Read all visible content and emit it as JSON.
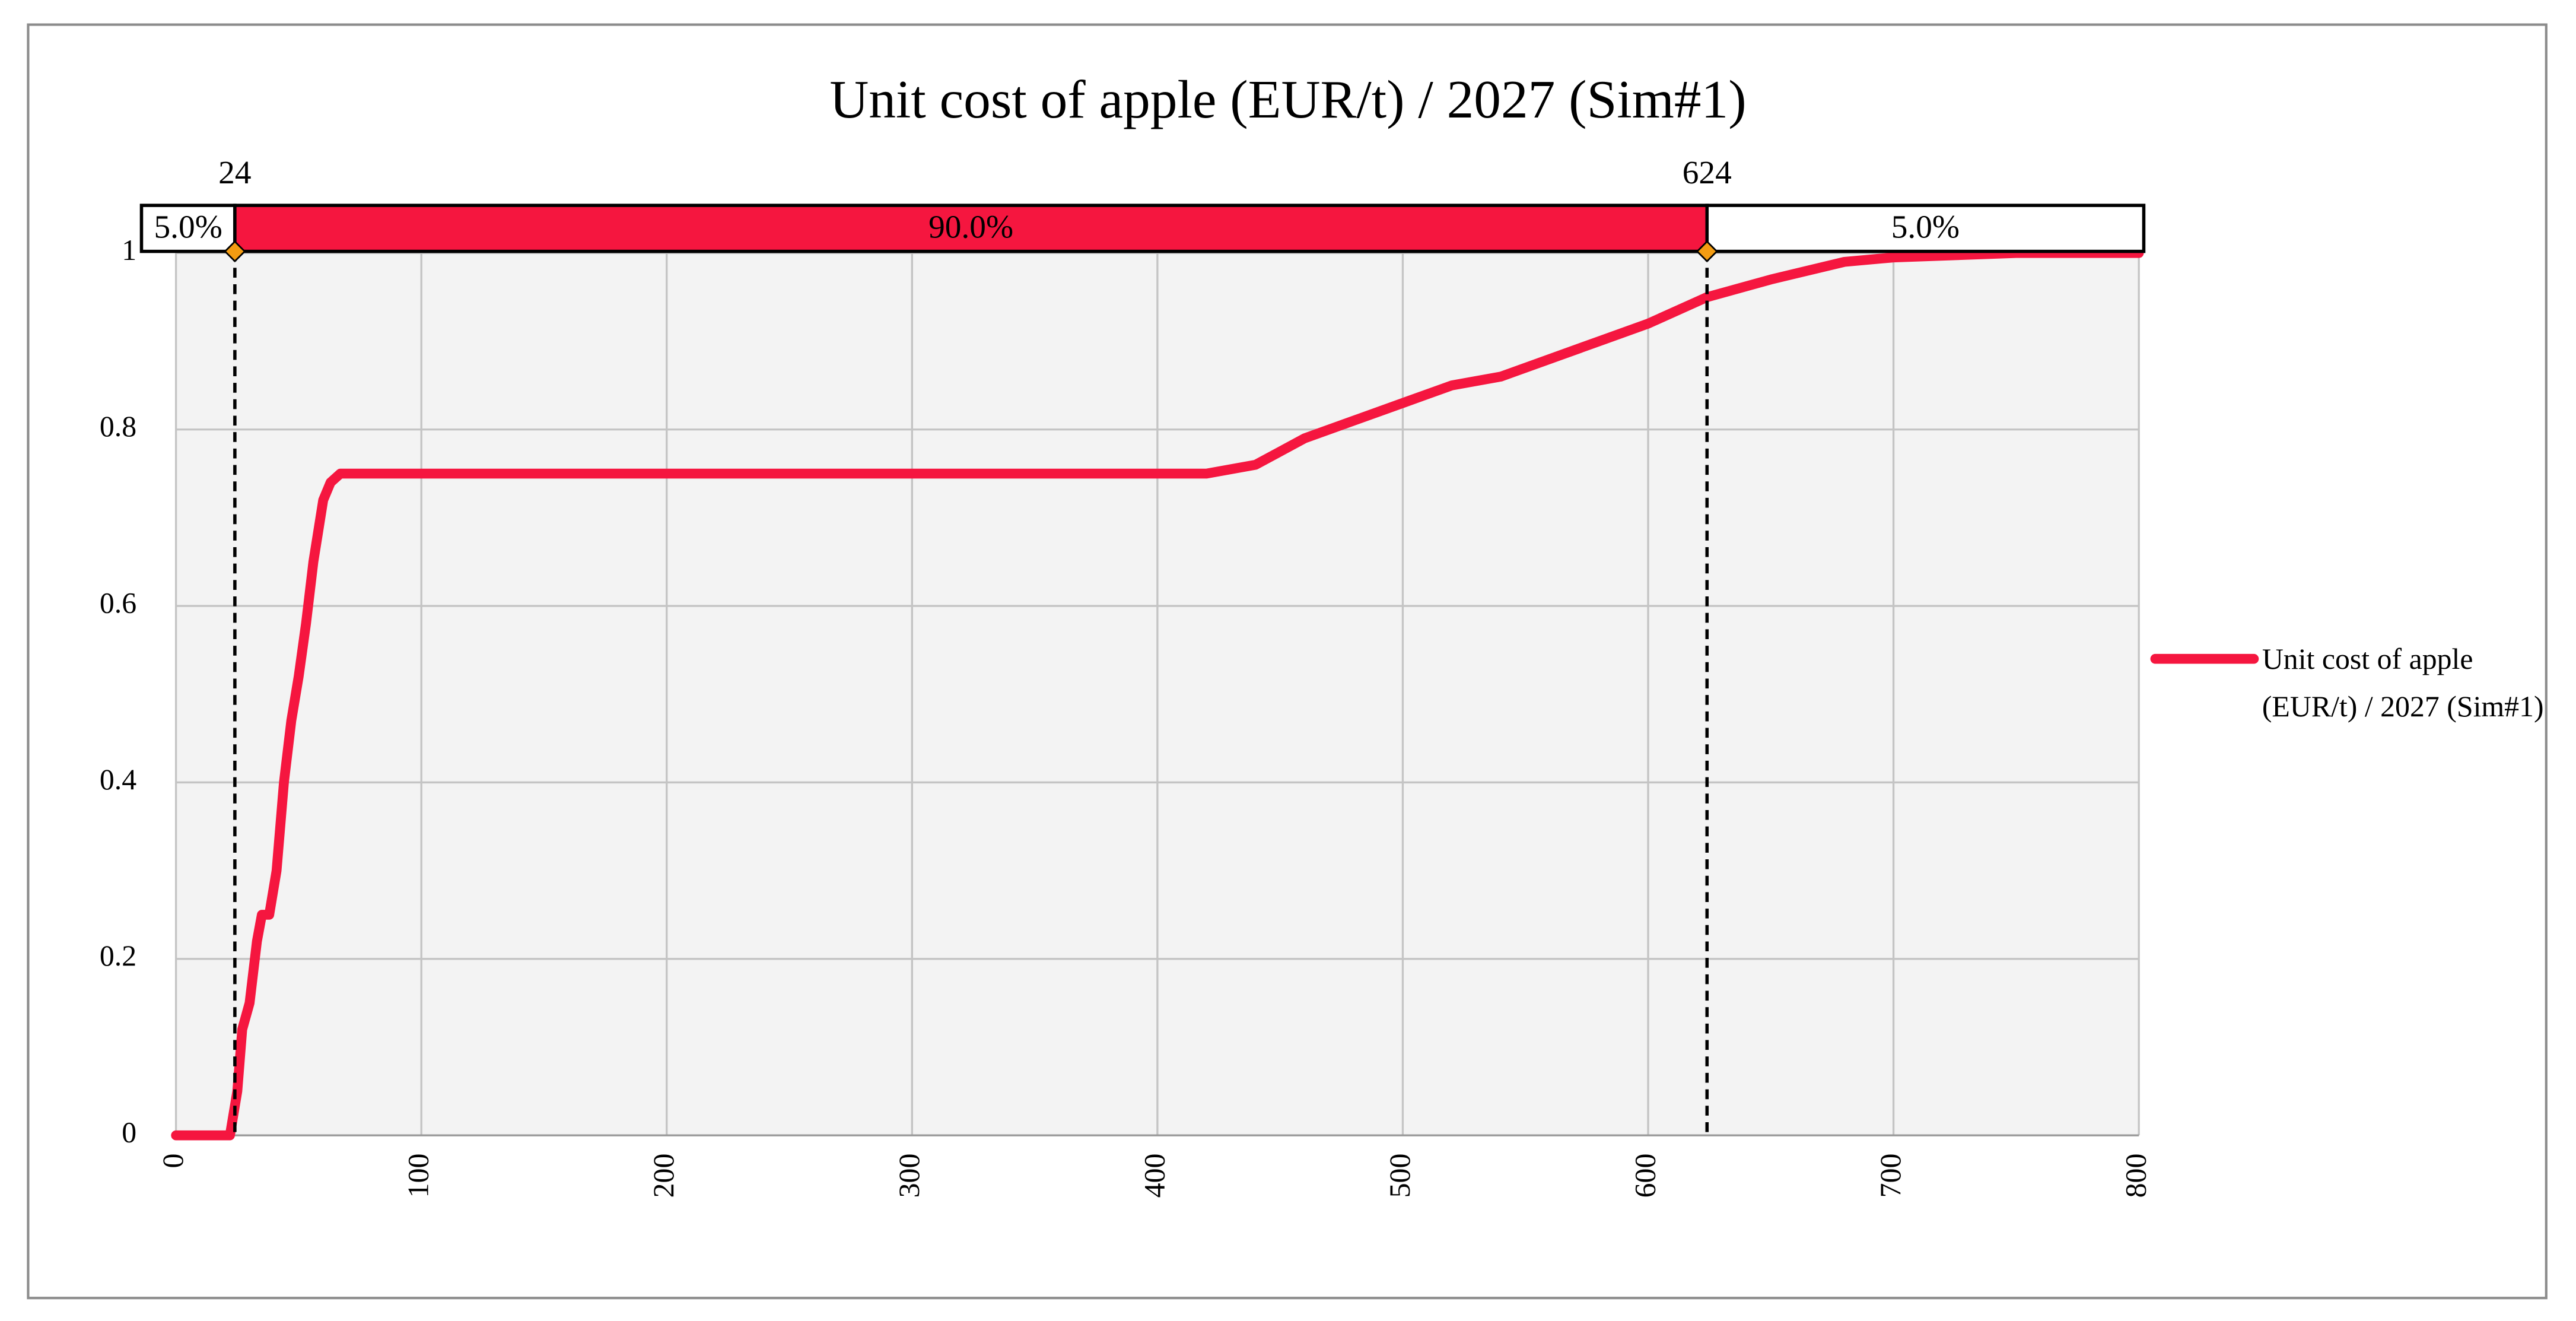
{
  "chart_data": {
    "type": "line",
    "title": "Unit cost of apple (EUR/t) / 2027 (Sim#1)",
    "series": [
      {
        "name": "Unit cost of apple (EUR/t) / 2027 (Sim#1)",
        "color": "#f5163f",
        "x": [
          0,
          22,
          25,
          27,
          30,
          33,
          35,
          38,
          41,
          44,
          47,
          50,
          53,
          56,
          60,
          63,
          67,
          420,
          440,
          460,
          480,
          500,
          520,
          540,
          560,
          580,
          600,
          624,
          650,
          680,
          700,
          750,
          800
        ],
        "values": [
          0,
          0,
          0.05,
          0.12,
          0.15,
          0.22,
          0.25,
          0.25,
          0.3,
          0.4,
          0.47,
          0.52,
          0.58,
          0.65,
          0.72,
          0.74,
          0.75,
          0.75,
          0.76,
          0.79,
          0.81,
          0.83,
          0.85,
          0.86,
          0.88,
          0.9,
          0.92,
          0.95,
          0.97,
          0.99,
          0.995,
          1,
          1
        ]
      }
    ],
    "markers": [
      24,
      624
    ],
    "bands": {
      "values": [
        5,
        90,
        5
      ],
      "value_labels": [
        "5.0%",
        "90.0%",
        "5.0%"
      ]
    },
    "xlim": [
      0,
      800
    ],
    "xticks": [
      0,
      100,
      200,
      300,
      400,
      500,
      600,
      700,
      800
    ],
    "ylim": [
      0,
      1
    ],
    "yticks": [
      0,
      0.2,
      0.4,
      0.6,
      0.8,
      1
    ],
    "grid": true,
    "legend": "right"
  }
}
